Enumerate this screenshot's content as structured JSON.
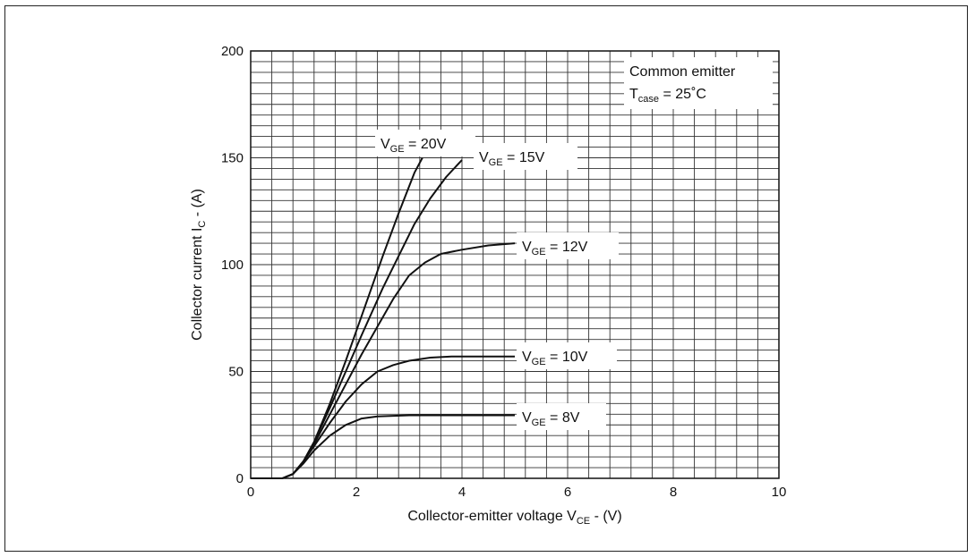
{
  "chart_data": {
    "type": "line",
    "xlabel": {
      "main": "Collector-emitter voltage V",
      "sub": "CE",
      "suffix": " - (V)"
    },
    "ylabel": {
      "main": "Collector current I",
      "sub": "C",
      "suffix": " - (A)"
    },
    "xlim": [
      0,
      10
    ],
    "ylim": [
      0,
      200
    ],
    "x_ticks": [
      0,
      2,
      4,
      6,
      8,
      10
    ],
    "y_ticks": [
      0,
      50,
      100,
      150,
      200
    ],
    "grid": true,
    "minor_grid_divisions": {
      "x": 25,
      "y": 40
    },
    "annotation": {
      "line1": "Common emitter",
      "line2_main": "T",
      "line2_sub": "case",
      "line2_suffix": " = 25˚C",
      "position": "top-right"
    },
    "series": [
      {
        "name": "V_GE = 20V",
        "label_main": "V",
        "label_sub": "GE",
        "label_suffix": " = 20V",
        "x": [
          0,
          0.6,
          0.8,
          1.0,
          1.2,
          1.5,
          1.8,
          2.1,
          2.5,
          2.8,
          3.1,
          3.25
        ],
        "y": [
          0,
          0,
          2,
          8,
          17,
          35,
          55,
          76,
          104,
          124,
          143,
          150
        ]
      },
      {
        "name": "V_GE = 15V",
        "label_main": "V",
        "label_sub": "GE",
        "label_suffix": " = 15V",
        "x": [
          0,
          0.6,
          0.8,
          1.0,
          1.2,
          1.5,
          1.8,
          2.1,
          2.5,
          2.8,
          3.1,
          3.4,
          3.7,
          4.0
        ],
        "y": [
          0,
          0,
          2,
          8,
          17,
          33,
          50,
          67,
          89,
          104,
          119,
          131,
          141,
          149
        ]
      },
      {
        "name": "V_GE = 12V",
        "label_main": "V",
        "label_sub": "GE",
        "label_suffix": " = 12V",
        "x": [
          0,
          0.6,
          0.8,
          1.0,
          1.2,
          1.5,
          1.8,
          2.1,
          2.4,
          2.7,
          3.0,
          3.3,
          3.6,
          4.0,
          4.5,
          5.0
        ],
        "y": [
          0,
          0,
          2,
          8,
          16,
          30,
          44,
          58,
          71,
          84,
          95,
          101,
          105,
          107,
          109,
          110
        ]
      },
      {
        "name": "V_GE = 10V",
        "label_main": "V",
        "label_sub": "GE",
        "label_suffix": " = 10V",
        "x": [
          0,
          0.6,
          0.8,
          1.0,
          1.2,
          1.5,
          1.8,
          2.1,
          2.4,
          2.7,
          3.0,
          3.4,
          3.8,
          4.2,
          5.0
        ],
        "y": [
          0,
          0,
          2,
          8,
          15,
          26,
          36,
          44,
          50,
          53,
          55,
          56.5,
          57,
          57,
          57
        ]
      },
      {
        "name": "V_GE = 8V",
        "label_main": "V",
        "label_sub": "GE",
        "label_suffix": " = 8V",
        "x": [
          0,
          0.6,
          0.8,
          1.0,
          1.2,
          1.5,
          1.8,
          2.1,
          2.4,
          3.0,
          4.0,
          5.0
        ],
        "y": [
          0,
          0,
          2,
          7,
          13,
          20,
          25,
          28,
          29,
          29.5,
          29.5,
          29.5
        ]
      }
    ]
  }
}
